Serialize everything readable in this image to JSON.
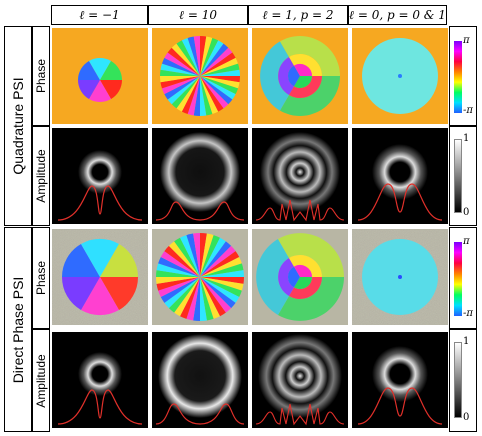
{
  "columns": [
    "ℓ = −1",
    "ℓ = 10",
    "ℓ = 1, p = 2",
    "ℓ = 0, p = 0 & 1"
  ],
  "sections": [
    {
      "label": "Quadrature PSI",
      "rows": [
        "Phase",
        "Amplitude"
      ]
    },
    {
      "label": "Direct Phase PSI",
      "rows": [
        "Phase",
        "Amplitude"
      ]
    }
  ],
  "phase_colorbar": {
    "top": "π",
    "bottom": "-π"
  },
  "amplitude_colorbar": {
    "top": "1",
    "bottom": "0"
  },
  "colors": {
    "background_phase": "#f6a821",
    "profile_line": "#e0302a",
    "flat_phase": "#6ee6e0"
  }
}
